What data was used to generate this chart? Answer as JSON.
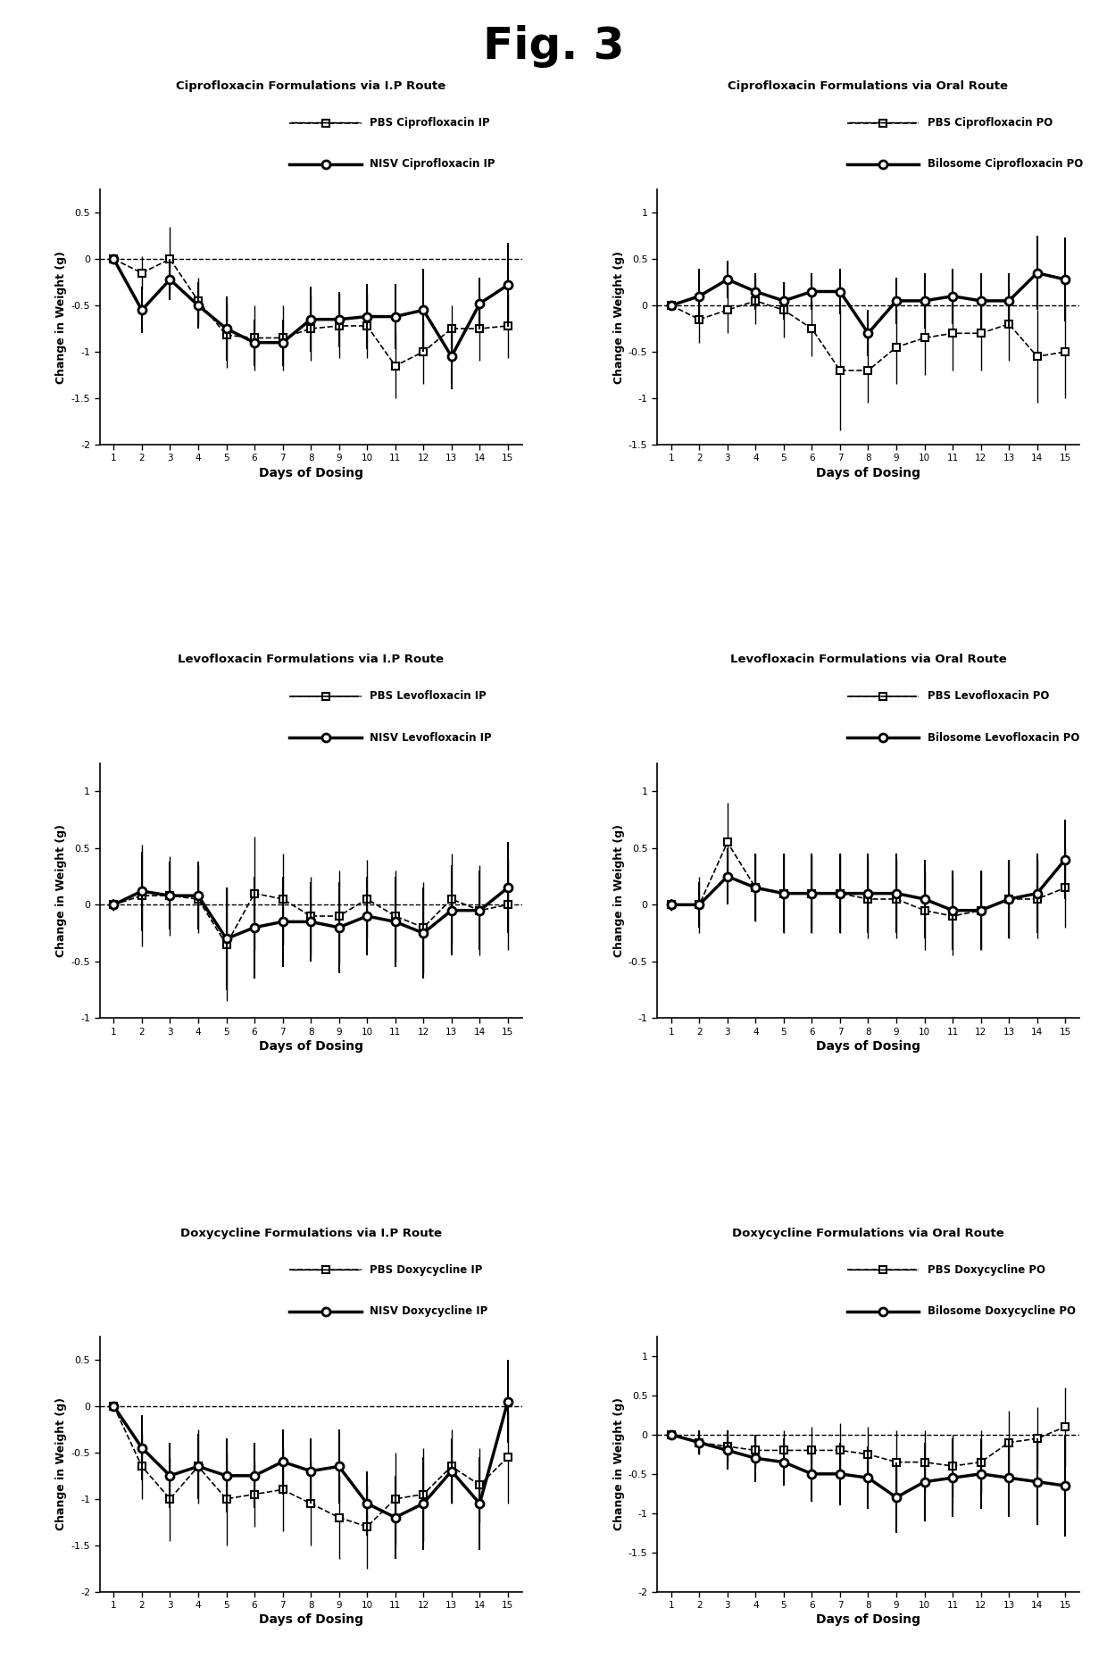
{
  "figure_title": "Fig. 3",
  "days": [
    1,
    2,
    3,
    4,
    5,
    6,
    7,
    8,
    9,
    10,
    11,
    12,
    13,
    14,
    15
  ],
  "plots": [
    {
      "title": "Ciprofloxacin Formulations via I.P Route",
      "legend1": "PBS Ciprofloxacin IP",
      "legend2": "NISV Ciprofloxacin IP",
      "ylim": [
        -2.0,
        0.75
      ],
      "yticks": [
        0.5,
        0.0,
        -0.5,
        -1.0,
        -1.5,
        -2.0
      ],
      "series1": [
        0.0,
        -0.15,
        0.0,
        -0.45,
        -0.82,
        -0.85,
        -0.85,
        -0.75,
        -0.72,
        -0.72,
        -1.15,
        -1.0,
        -0.75,
        -0.75,
        -0.72
      ],
      "err1": [
        0.05,
        0.18,
        0.35,
        0.25,
        0.35,
        0.35,
        0.35,
        0.35,
        0.35,
        0.35,
        0.35,
        0.35,
        0.25,
        0.35,
        0.35
      ],
      "series2": [
        0.0,
        -0.55,
        -0.22,
        -0.5,
        -0.75,
        -0.9,
        -0.9,
        -0.65,
        -0.65,
        -0.62,
        -0.62,
        -0.55,
        -1.05,
        -0.48,
        -0.28
      ],
      "err2": [
        0.05,
        0.25,
        0.22,
        0.25,
        0.35,
        0.25,
        0.25,
        0.35,
        0.3,
        0.35,
        0.35,
        0.45,
        0.35,
        0.28,
        0.45
      ],
      "dashed_ref": true
    },
    {
      "title": "Ciprofloxacin Formulations via Oral Route",
      "legend1": "PBS Ciprofloxacin PO",
      "legend2": "Bilosome Ciprofloxacin PO",
      "ylim": [
        -1.5,
        1.25
      ],
      "yticks": [
        1.0,
        0.5,
        0.0,
        -0.5,
        -1.0,
        -1.5
      ],
      "series1": [
        0.0,
        -0.15,
        -0.05,
        0.05,
        -0.05,
        -0.25,
        -0.7,
        -0.7,
        -0.45,
        -0.35,
        -0.3,
        -0.3,
        -0.2,
        -0.55,
        -0.5
      ],
      "err1": [
        0.05,
        0.25,
        0.25,
        0.25,
        0.3,
        0.3,
        0.65,
        0.35,
        0.4,
        0.4,
        0.4,
        0.4,
        0.4,
        0.5,
        0.5
      ],
      "series2": [
        0.0,
        0.1,
        0.28,
        0.15,
        0.05,
        0.15,
        0.15,
        -0.3,
        0.05,
        0.05,
        0.1,
        0.05,
        0.05,
        0.35,
        0.28
      ],
      "err2": [
        0.05,
        0.3,
        0.2,
        0.2,
        0.2,
        0.2,
        0.25,
        0.25,
        0.25,
        0.3,
        0.3,
        0.3,
        0.3,
        0.4,
        0.45
      ],
      "dashed_ref": true
    },
    {
      "title": "Levofloxacin Formulations via I.P Route",
      "legend1": "PBS Levofloxacin IP",
      "legend2": "NISV Levofloxacin IP",
      "ylim": [
        -1.0,
        1.25
      ],
      "yticks": [
        1.0,
        0.5,
        0.0,
        -0.5,
        -1.0
      ],
      "series1": [
        0.0,
        0.08,
        0.08,
        0.05,
        -0.35,
        0.1,
        0.05,
        -0.1,
        -0.1,
        0.05,
        -0.1,
        -0.2,
        0.05,
        -0.05,
        0.0
      ],
      "err1": [
        0.05,
        0.45,
        0.35,
        0.3,
        0.5,
        0.5,
        0.4,
        0.35,
        0.4,
        0.35,
        0.4,
        0.4,
        0.4,
        0.4,
        0.4
      ],
      "series2": [
        0.0,
        0.12,
        0.08,
        0.08,
        -0.3,
        -0.2,
        -0.15,
        -0.15,
        -0.2,
        -0.1,
        -0.15,
        -0.25,
        -0.05,
        -0.05,
        0.15
      ],
      "err2": [
        0.05,
        0.35,
        0.3,
        0.3,
        0.45,
        0.45,
        0.4,
        0.35,
        0.4,
        0.35,
        0.4,
        0.4,
        0.4,
        0.35,
        0.4
      ],
      "dashed_ref": true
    },
    {
      "title": "Levofloxacin Formulations via Oral Route",
      "legend1": "PBS Levofloxacin PO",
      "legend2": "Bilosome Levofloxacin PO",
      "ylim": [
        -1.0,
        1.25
      ],
      "yticks": [
        1.0,
        0.5,
        0.0,
        -0.5,
        -1.0
      ],
      "series1": [
        0.0,
        0.0,
        0.55,
        0.15,
        0.1,
        0.1,
        0.1,
        0.05,
        0.05,
        -0.05,
        -0.1,
        -0.05,
        0.05,
        0.05,
        0.15
      ],
      "err1": [
        0.05,
        0.25,
        0.35,
        0.3,
        0.35,
        0.35,
        0.35,
        0.35,
        0.35,
        0.35,
        0.35,
        0.35,
        0.35,
        0.35,
        0.35
      ],
      "series2": [
        0.0,
        0.0,
        0.25,
        0.15,
        0.1,
        0.1,
        0.1,
        0.1,
        0.1,
        0.05,
        -0.05,
        -0.05,
        0.05,
        0.1,
        0.4
      ],
      "err2": [
        0.05,
        0.2,
        0.25,
        0.3,
        0.35,
        0.35,
        0.35,
        0.35,
        0.35,
        0.35,
        0.35,
        0.35,
        0.35,
        0.35,
        0.35
      ],
      "dashed_ref": false
    },
    {
      "title": "Doxycycline Formulations via I.P Route",
      "legend1": "PBS Doxycycline IP",
      "legend2": "NISV Doxycycline IP",
      "ylim": [
        -2.0,
        0.75
      ],
      "yticks": [
        0.5,
        0.0,
        -0.5,
        -1.0,
        -1.5,
        -2.0
      ],
      "series1": [
        0.0,
        -0.65,
        -1.0,
        -0.65,
        -1.0,
        -0.95,
        -0.9,
        -1.05,
        -1.2,
        -1.3,
        -1.0,
        -0.95,
        -0.65,
        -0.85,
        -0.55
      ],
      "err1": [
        0.05,
        0.35,
        0.45,
        0.4,
        0.5,
        0.35,
        0.45,
        0.45,
        0.45,
        0.45,
        0.5,
        0.5,
        0.4,
        0.4,
        0.5
      ],
      "series2": [
        0.0,
        -0.45,
        -0.75,
        -0.65,
        -0.75,
        -0.75,
        -0.6,
        -0.7,
        -0.65,
        -1.05,
        -1.2,
        -1.05,
        -0.7,
        -1.05,
        0.05
      ],
      "err2": [
        0.05,
        0.35,
        0.35,
        0.35,
        0.4,
        0.35,
        0.35,
        0.35,
        0.4,
        0.35,
        0.45,
        0.5,
        0.35,
        0.5,
        0.45
      ],
      "dashed_ref": true
    },
    {
      "title": "Doxycycline Formulations via Oral Route",
      "legend1": "PBS Doxycycline PO",
      "legend2": "Bilosome Doxycycline PO",
      "ylim": [
        -2.0,
        1.25
      ],
      "yticks": [
        1.0,
        0.5,
        0.0,
        -0.5,
        -1.0,
        -1.5,
        -2.0
      ],
      "series1": [
        0.0,
        -0.1,
        -0.15,
        -0.2,
        -0.2,
        -0.2,
        -0.2,
        -0.25,
        -0.35,
        -0.35,
        -0.4,
        -0.35,
        -0.1,
        -0.05,
        0.1
      ],
      "err1": [
        0.05,
        0.15,
        0.2,
        0.2,
        0.25,
        0.3,
        0.35,
        0.35,
        0.4,
        0.4,
        0.4,
        0.4,
        0.4,
        0.4,
        0.5
      ],
      "series2": [
        0.0,
        -0.1,
        -0.2,
        -0.3,
        -0.35,
        -0.5,
        -0.5,
        -0.55,
        -0.8,
        -0.6,
        -0.55,
        -0.5,
        -0.55,
        -0.6,
        -0.65
      ],
      "err2": [
        0.05,
        0.15,
        0.25,
        0.3,
        0.3,
        0.35,
        0.4,
        0.4,
        0.45,
        0.5,
        0.5,
        0.45,
        0.5,
        0.55,
        0.65
      ],
      "dashed_ref": true
    }
  ],
  "xlabel": "Days of Dosing",
  "ylabel": "Change in Weight (g)",
  "bg_color": "#ffffff"
}
